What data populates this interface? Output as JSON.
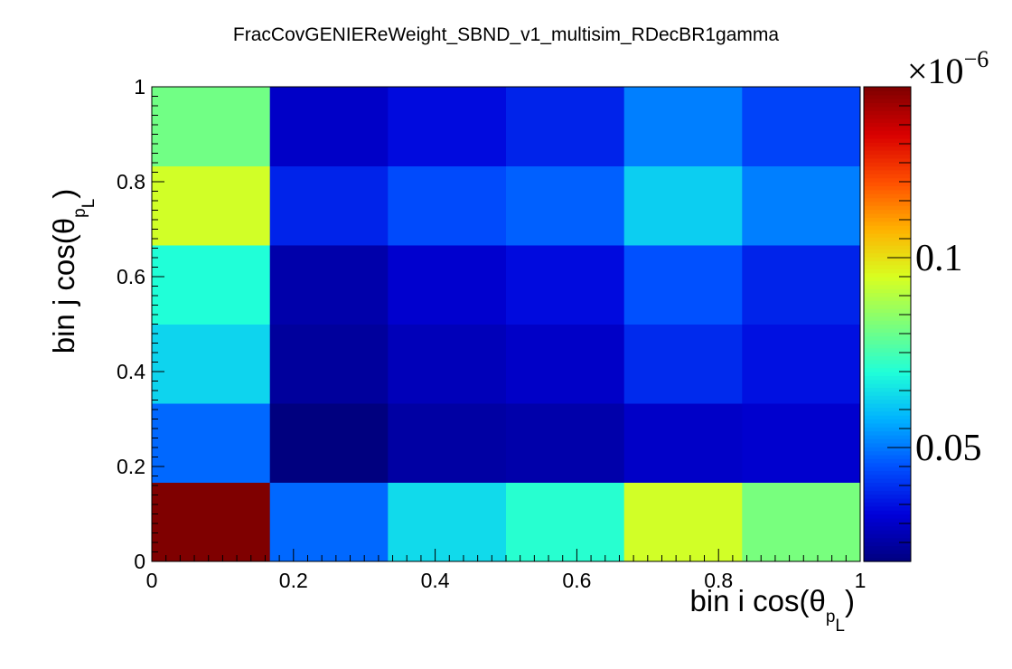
{
  "chart_data": {
    "type": "heatmap",
    "title": "FracCovGENIEReWeight_SBND_v1_multisim_RDecBR1gamma",
    "xlabel": {
      "main": "bin i cos(θ",
      "sub": "p",
      "subsub": "L",
      "close": ")"
    },
    "ylabel": {
      "main": "bin j cos(θ",
      "sub": "p",
      "subsub": "L",
      "close": ")"
    },
    "x_edges": [
      0,
      0.1667,
      0.3333,
      0.5,
      0.6667,
      0.8333,
      1
    ],
    "y_edges": [
      0,
      0.1667,
      0.3333,
      0.5,
      0.6667,
      0.8333,
      1
    ],
    "xlim": [
      0,
      1
    ],
    "ylim": [
      0,
      1
    ],
    "x_ticks": [
      {
        "value": 0,
        "label": "0"
      },
      {
        "value": 0.2,
        "label": "0.2"
      },
      {
        "value": 0.4,
        "label": "0.4"
      },
      {
        "value": 0.6,
        "label": "0.6"
      },
      {
        "value": 0.8,
        "label": "0.8"
      },
      {
        "value": 1,
        "label": "1"
      }
    ],
    "y_ticks": [
      {
        "value": 0,
        "label": "0"
      },
      {
        "value": 0.2,
        "label": "0.2"
      },
      {
        "value": 0.4,
        "label": "0.4"
      },
      {
        "value": 0.6,
        "label": "0.6"
      },
      {
        "value": 0.8,
        "label": "0.8"
      },
      {
        "value": 1,
        "label": "1"
      }
    ],
    "z_unit": "1e-6",
    "z_range": [
      0.02,
      0.145
    ],
    "z_ticks": [
      {
        "value": 0.05,
        "label": "0.05"
      },
      {
        "value": 0.1,
        "label": "0.1"
      }
    ],
    "z_exponent": {
      "base": "×10",
      "power": "−6"
    },
    "values_row_major_bottom_to_top": [
      [
        0.145,
        0.048,
        0.064,
        0.071,
        0.094,
        0.082
      ],
      [
        0.048,
        0.02,
        0.025,
        0.026,
        0.03,
        0.031
      ],
      [
        0.063,
        0.024,
        0.028,
        0.03,
        0.039,
        0.035
      ],
      [
        0.07,
        0.026,
        0.031,
        0.034,
        0.045,
        0.038
      ],
      [
        0.094,
        0.038,
        0.044,
        0.047,
        0.062,
        0.051
      ],
      [
        0.081,
        0.03,
        0.034,
        0.038,
        0.051,
        0.043
      ]
    ],
    "palette": [
      "#00007f",
      "#0000d9",
      "#0050ff",
      "#00b2ff",
      "#20ffd8",
      "#7cff7a",
      "#d8ff20",
      "#ffb200",
      "#ff4f00",
      "#d90000",
      "#7f0000"
    ],
    "grid": false,
    "legend": "colorbar-right"
  }
}
